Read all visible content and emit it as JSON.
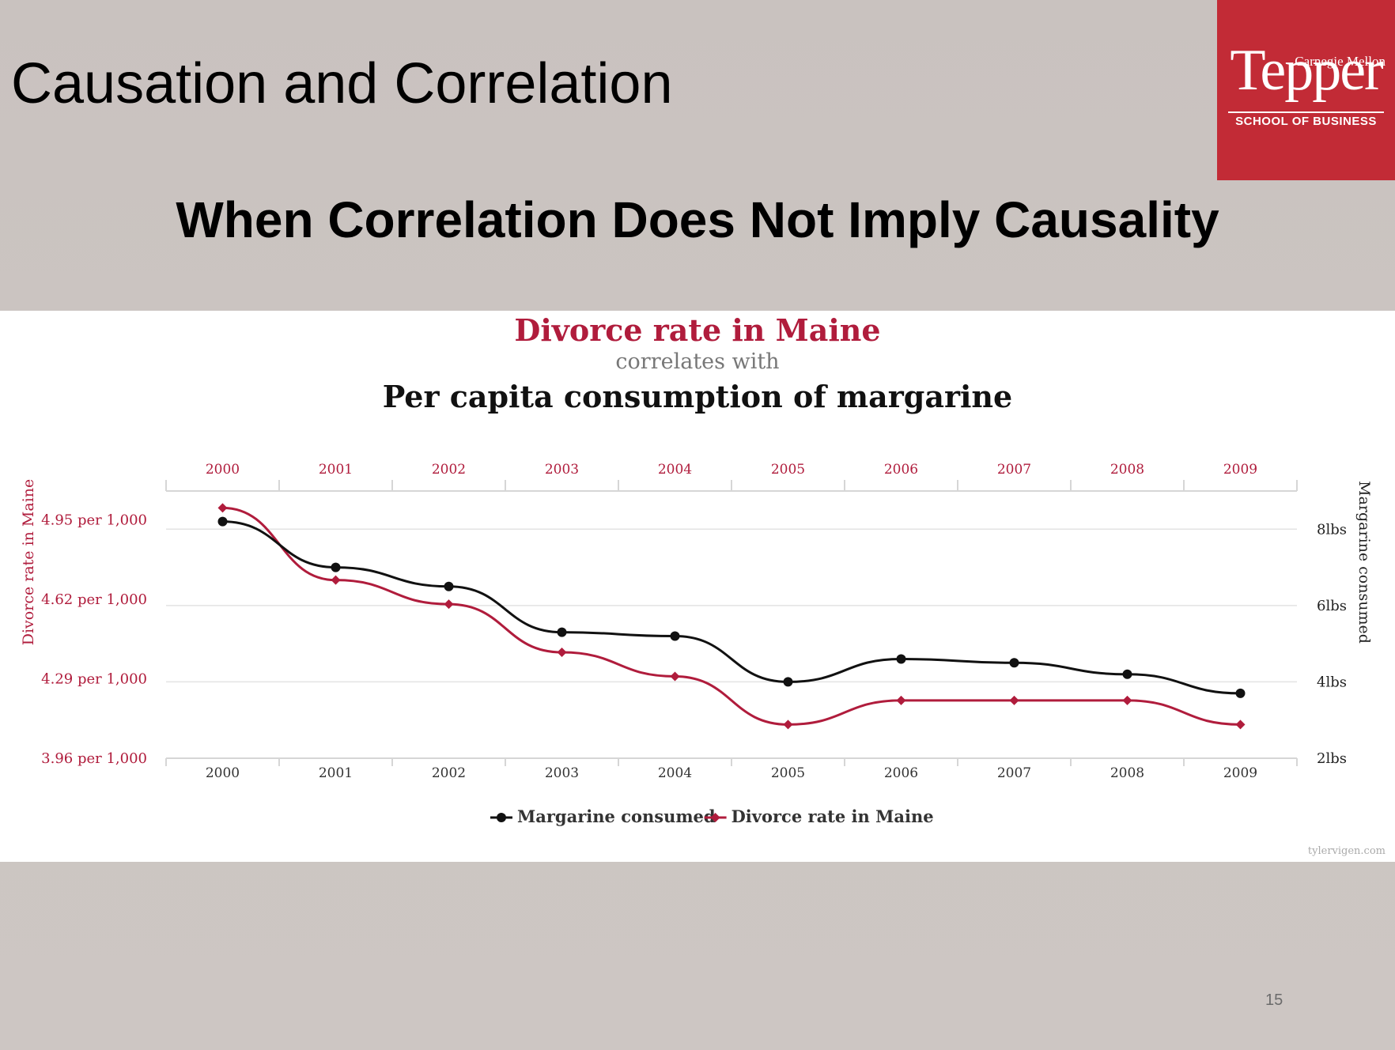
{
  "slide": {
    "title": "Causation and Correlation",
    "subtitle": "When Correlation Does Not Imply Causality",
    "page_number": "15"
  },
  "logo": {
    "line1": "Carnegie Mellon",
    "line2": "Tepper",
    "line3": "SCHOOL OF BUSINESS",
    "color": "#c22b36"
  },
  "chart_data": {
    "type": "line",
    "title": "Divorce rate in Maine",
    "connector": "correlates with",
    "subtitle": "Per capita consumption of margarine",
    "x": [
      "2000",
      "2001",
      "2002",
      "2003",
      "2004",
      "2005",
      "2006",
      "2007",
      "2008",
      "2009"
    ],
    "series": [
      {
        "name": "Margarine consumed",
        "axis": "right",
        "color": "#111111",
        "marker": "circle",
        "values": [
          8.2,
          7.0,
          6.5,
          5.3,
          5.2,
          4.0,
          4.6,
          4.5,
          4.2,
          3.7
        ]
      },
      {
        "name": "Divorce rate in Maine",
        "axis": "left",
        "color": "#b01c3c",
        "marker": "diamond",
        "values": [
          5.0,
          4.7,
          4.6,
          4.4,
          4.3,
          4.1,
          4.2,
          4.2,
          4.2,
          4.1
        ]
      }
    ],
    "y_left": {
      "label": "Divorce rate in Maine",
      "ticks": [
        {
          "value": 3.96,
          "label": "3.96 per 1,000"
        },
        {
          "value": 4.29,
          "label": "4.29 per 1,000"
        },
        {
          "value": 4.62,
          "label": "4.62 per 1,000"
        },
        {
          "value": 4.95,
          "label": "4.95 per 1,000"
        }
      ],
      "ylim": [
        3.96,
        5.07
      ]
    },
    "y_right": {
      "label": "Margarine consumed",
      "ticks": [
        {
          "value": 2,
          "label": "2lbs"
        },
        {
          "value": 4,
          "label": "4lbs"
        },
        {
          "value": 6,
          "label": "6lbs"
        },
        {
          "value": 8,
          "label": "8lbs"
        }
      ],
      "ylim": [
        2,
        9
      ]
    },
    "legend": "bottom-center",
    "grid": true,
    "source": "tylervigen.com"
  }
}
